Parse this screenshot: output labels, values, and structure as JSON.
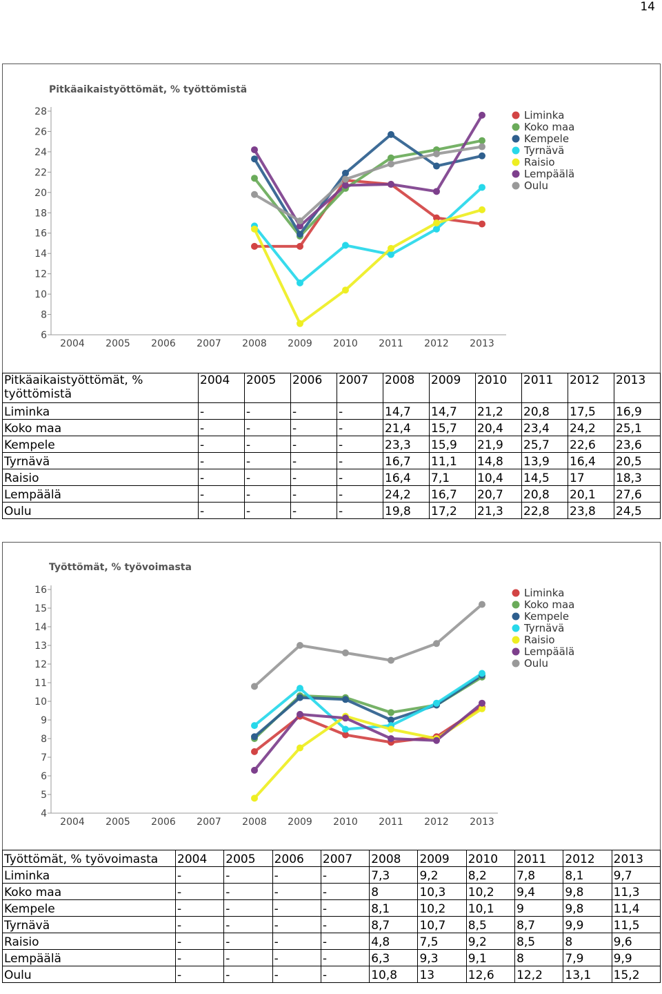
{
  "page_number": "14",
  "chart_data": [
    {
      "type": "line",
      "title": "Pitkäaikaistyöttömät, % työttömistä",
      "categories": [
        "2004",
        "2005",
        "2006",
        "2007",
        "2008",
        "2009",
        "2010",
        "2011",
        "2012",
        "2013"
      ],
      "ylim": [
        6,
        28
      ],
      "yticks": [
        6,
        8,
        10,
        12,
        14,
        16,
        18,
        20,
        22,
        24,
        26,
        28
      ],
      "legend_position": "top-right",
      "grid": false,
      "series": [
        {
          "name": "Liminka",
          "color": "#d24444",
          "values": [
            null,
            null,
            null,
            null,
            14.7,
            14.7,
            21.2,
            20.8,
            17.5,
            16.9
          ]
        },
        {
          "name": "Koko maa",
          "color": "#6aab5a",
          "values": [
            null,
            null,
            null,
            null,
            21.4,
            15.7,
            20.4,
            23.4,
            24.2,
            25.1
          ]
        },
        {
          "name": "Kempele",
          "color": "#2e5f8e",
          "values": [
            null,
            null,
            null,
            null,
            23.3,
            15.9,
            21.9,
            25.7,
            22.6,
            23.6
          ]
        },
        {
          "name": "Tyrnävä",
          "color": "#27d8ea",
          "values": [
            null,
            null,
            null,
            null,
            16.7,
            11.1,
            14.8,
            13.9,
            16.4,
            20.5
          ]
        },
        {
          "name": "Raisio",
          "color": "#eeee22",
          "values": [
            null,
            null,
            null,
            null,
            16.4,
            7.1,
            10.4,
            14.5,
            17,
            18.3
          ]
        },
        {
          "name": "Lempäälä",
          "color": "#7d3f8c",
          "values": [
            null,
            null,
            null,
            null,
            24.2,
            16.7,
            20.7,
            20.8,
            20.1,
            27.6
          ]
        },
        {
          "name": "Oulu",
          "color": "#999999",
          "values": [
            null,
            null,
            null,
            null,
            19.8,
            17.2,
            21.3,
            22.8,
            23.8,
            24.5
          ]
        }
      ]
    },
    {
      "type": "line",
      "title": "Työttömät, % työvoimasta",
      "categories": [
        "2004",
        "2005",
        "2006",
        "2007",
        "2008",
        "2009",
        "2010",
        "2011",
        "2012",
        "2013"
      ],
      "ylim": [
        4,
        16
      ],
      "yticks": [
        4,
        5,
        6,
        7,
        8,
        9,
        10,
        11,
        12,
        13,
        14,
        15,
        16
      ],
      "legend_position": "top-right",
      "grid": false,
      "series": [
        {
          "name": "Liminka",
          "color": "#d24444",
          "values": [
            null,
            null,
            null,
            null,
            7.3,
            9.2,
            8.2,
            7.8,
            8.1,
            9.7
          ]
        },
        {
          "name": "Koko maa",
          "color": "#6aab5a",
          "values": [
            null,
            null,
            null,
            null,
            8,
            10.3,
            10.2,
            9.4,
            9.8,
            11.3
          ]
        },
        {
          "name": "Kempele",
          "color": "#2e5f8e",
          "values": [
            null,
            null,
            null,
            null,
            8.1,
            10.2,
            10.1,
            9,
            9.8,
            11.4
          ]
        },
        {
          "name": "Tyrnävä",
          "color": "#27d8ea",
          "values": [
            null,
            null,
            null,
            null,
            8.7,
            10.7,
            8.5,
            8.7,
            9.9,
            11.5
          ]
        },
        {
          "name": "Raisio",
          "color": "#eeee22",
          "values": [
            null,
            null,
            null,
            null,
            4.8,
            7.5,
            9.2,
            8.5,
            8,
            9.6
          ]
        },
        {
          "name": "Lempäälä",
          "color": "#7d3f8c",
          "values": [
            null,
            null,
            null,
            null,
            6.3,
            9.3,
            9.1,
            8,
            7.9,
            9.9
          ]
        },
        {
          "name": "Oulu",
          "color": "#999999",
          "values": [
            null,
            null,
            null,
            null,
            10.8,
            13,
            12.6,
            12.2,
            13.1,
            15.2
          ]
        }
      ]
    }
  ],
  "tables": [
    {
      "title": "Pitkäaikaistyöttömät, % työttömistä",
      "years": [
        "2004",
        "2005",
        "2006",
        "2007",
        "2008",
        "2009",
        "2010",
        "2011",
        "2012",
        "2013"
      ],
      "rows": [
        {
          "name": "Liminka",
          "cells": [
            "-",
            "-",
            "-",
            "-",
            "14,7",
            "14,7",
            "21,2",
            "20,8",
            "17,5",
            "16,9"
          ]
        },
        {
          "name": "Koko maa",
          "cells": [
            "-",
            "-",
            "-",
            "-",
            "21,4",
            "15,7",
            "20,4",
            "23,4",
            "24,2",
            "25,1"
          ]
        },
        {
          "name": "Kempele",
          "cells": [
            "-",
            "-",
            "-",
            "-",
            "23,3",
            "15,9",
            "21,9",
            "25,7",
            "22,6",
            "23,6"
          ]
        },
        {
          "name": "Tyrnävä",
          "cells": [
            "-",
            "-",
            "-",
            "-",
            "16,7",
            "11,1",
            "14,8",
            "13,9",
            "16,4",
            "20,5"
          ]
        },
        {
          "name": "Raisio",
          "cells": [
            "-",
            "-",
            "-",
            "-",
            "16,4",
            "7,1",
            "10,4",
            "14,5",
            "17",
            "18,3"
          ]
        },
        {
          "name": "Lempäälä",
          "cells": [
            "-",
            "-",
            "-",
            "-",
            "24,2",
            "16,7",
            "20,7",
            "20,8",
            "20,1",
            "27,6"
          ]
        },
        {
          "name": "Oulu",
          "cells": [
            "-",
            "-",
            "-",
            "-",
            "19,8",
            "17,2",
            "21,3",
            "22,8",
            "23,8",
            "24,5"
          ]
        }
      ]
    },
    {
      "title": "Työttömät, % työvoimasta",
      "years": [
        "2004",
        "2005",
        "2006",
        "2007",
        "2008",
        "2009",
        "2010",
        "2011",
        "2012",
        "2013"
      ],
      "rows": [
        {
          "name": "Liminka",
          "cells": [
            "-",
            "-",
            "-",
            "-",
            "7,3",
            "9,2",
            "8,2",
            "7,8",
            "8,1",
            "9,7"
          ]
        },
        {
          "name": "Koko maa",
          "cells": [
            "-",
            "-",
            "-",
            "-",
            "8",
            "10,3",
            "10,2",
            "9,4",
            "9,8",
            "11,3"
          ]
        },
        {
          "name": "Kempele",
          "cells": [
            "-",
            "-",
            "-",
            "-",
            "8,1",
            "10,2",
            "10,1",
            "9",
            "9,8",
            "11,4"
          ]
        },
        {
          "name": "Tyrnävä",
          "cells": [
            "-",
            "-",
            "-",
            "-",
            "8,7",
            "10,7",
            "8,5",
            "8,7",
            "9,9",
            "11,5"
          ]
        },
        {
          "name": "Raisio",
          "cells": [
            "-",
            "-",
            "-",
            "-",
            "4,8",
            "7,5",
            "9,2",
            "8,5",
            "8",
            "9,6"
          ]
        },
        {
          "name": "Lempäälä",
          "cells": [
            "-",
            "-",
            "-",
            "-",
            "6,3",
            "9,3",
            "9,1",
            "8",
            "7,9",
            "9,9"
          ]
        },
        {
          "name": "Oulu",
          "cells": [
            "-",
            "-",
            "-",
            "-",
            "10,8",
            "13",
            "12,6",
            "12,2",
            "13,1",
            "15,2"
          ]
        }
      ]
    }
  ]
}
